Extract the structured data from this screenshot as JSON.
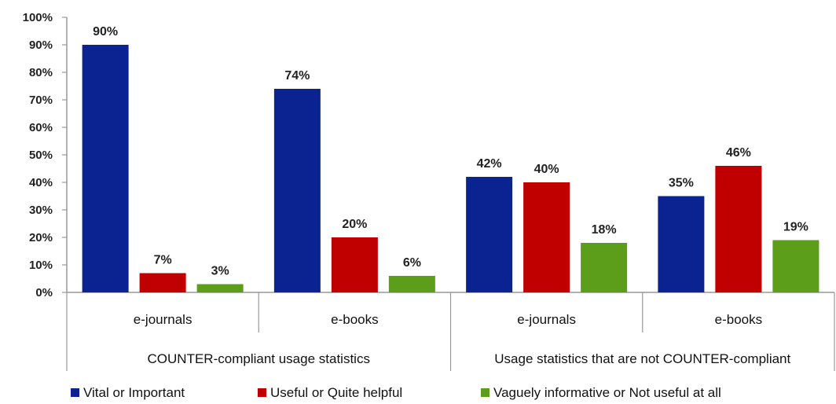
{
  "chart_data": {
    "type": "bar",
    "title": "",
    "xlabel": "",
    "ylabel": "",
    "ylim": [
      0,
      100
    ],
    "y_ticks": [
      "0%",
      "10%",
      "20%",
      "30%",
      "40%",
      "50%",
      "60%",
      "70%",
      "80%",
      "90%",
      "100%"
    ],
    "groups": [
      "COUNTER-compliant usage statistics",
      "Usage statistics that are not COUNTER-compliant"
    ],
    "categories": [
      "e-journals",
      "e-books",
      "e-journals",
      "e-books"
    ],
    "category_group": [
      0,
      0,
      1,
      1
    ],
    "series": [
      {
        "name": "Vital or Important",
        "color": "#0b2390",
        "values": [
          90,
          74,
          42,
          35
        ]
      },
      {
        "name": "Useful or Quite helpful",
        "color": "#c00000",
        "values": [
          7,
          20,
          40,
          46
        ]
      },
      {
        "name": "Vaguely informative or Not useful at all",
        "color": "#5c9e1a",
        "values": [
          3,
          6,
          18,
          19
        ]
      }
    ],
    "grid": false,
    "legend_position": "bottom",
    "data_labels": "percent"
  }
}
